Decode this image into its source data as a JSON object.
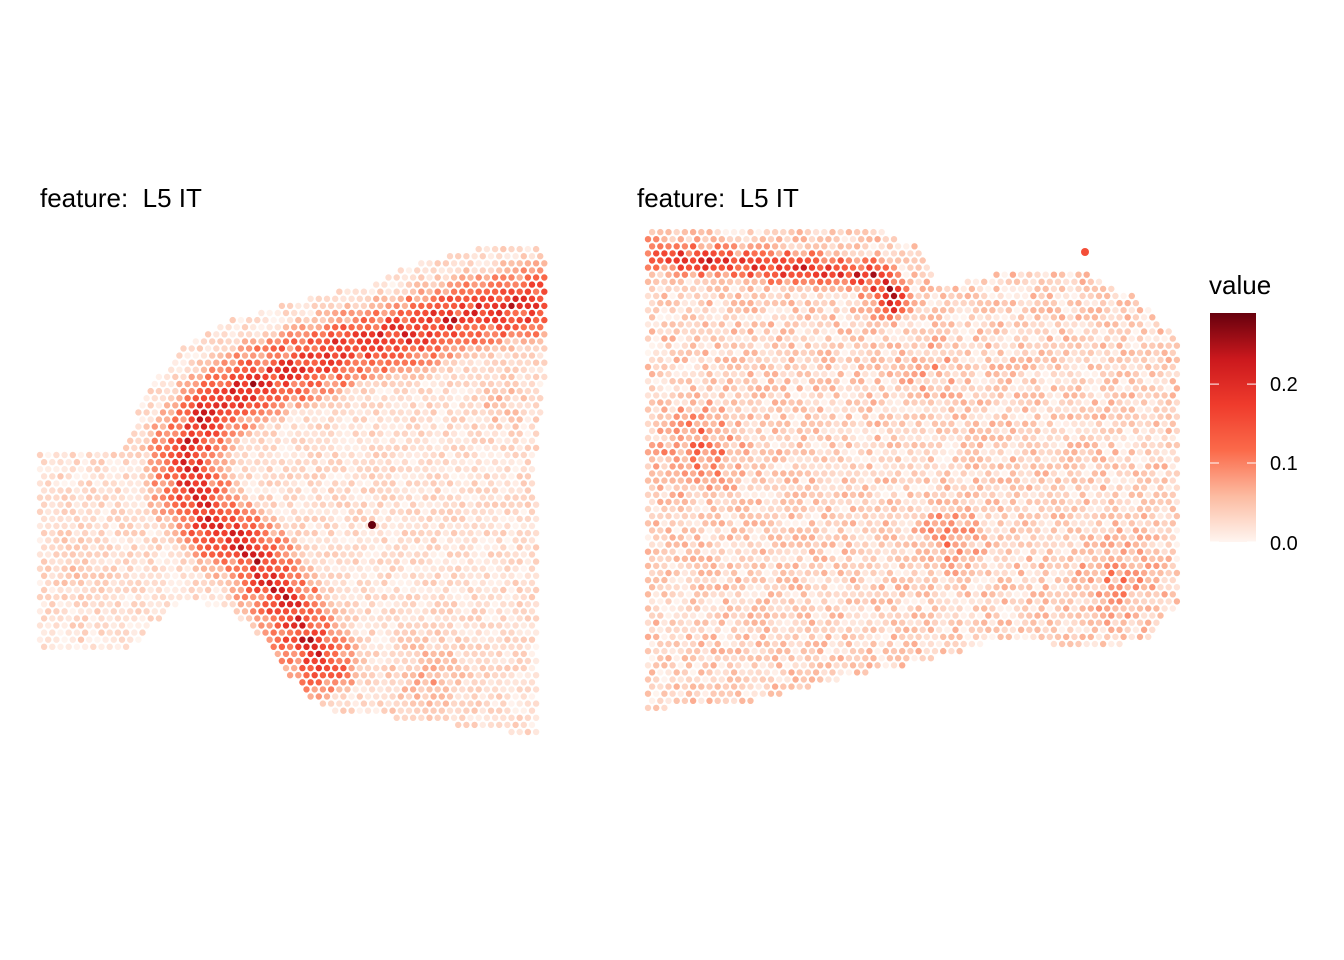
{
  "chart_data": [
    {
      "type": "scatter",
      "title": "feature:  L5 IT",
      "panel": "left",
      "color_scale": {
        "label": "value",
        "min": 0.0,
        "max": 0.29,
        "ticks": [
          {
            "value": 0.0,
            "label": "0.0"
          },
          {
            "value": 0.1,
            "label": "0.1"
          },
          {
            "value": 0.2,
            "label": "0.2"
          }
        ],
        "low_color": "#fff5f0",
        "mid_color": "#ef3b2c",
        "high_color": "#67000d"
      },
      "note_points": [
        {
          "x": 0.67,
          "y": 0.45,
          "value": 0.29
        }
      ]
    },
    {
      "type": "scatter",
      "title": "feature:  L5 IT",
      "panel": "right",
      "note_points": [
        {
          "x": 0.83,
          "y": 0.98,
          "value": 0.15
        }
      ]
    }
  ]
}
